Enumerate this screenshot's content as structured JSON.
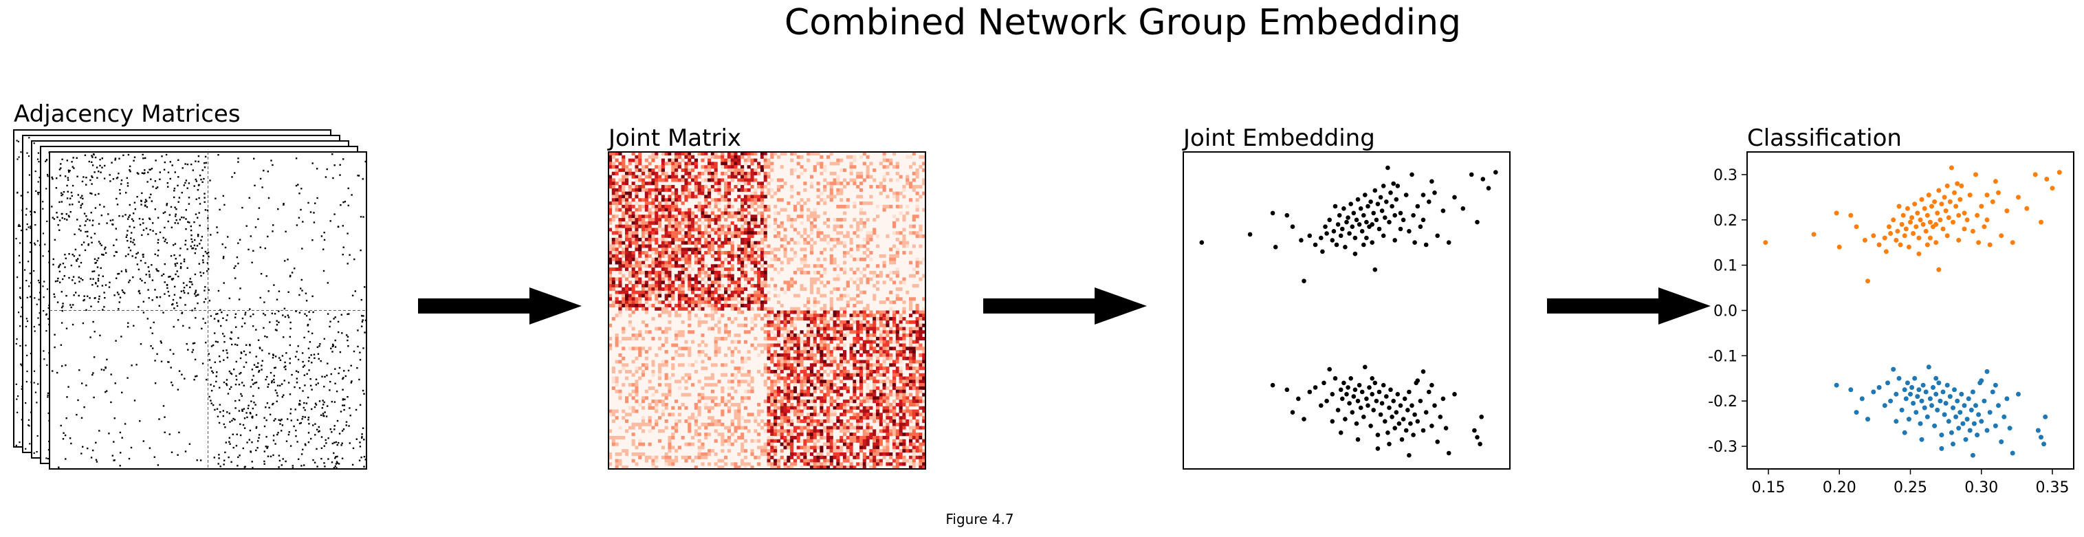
{
  "figure": {
    "title": "Combined Network Group Embedding",
    "caption": "Figure 4.7"
  },
  "panels": {
    "adjacency": {
      "title": "Adjacency Matrices",
      "stack_count": 5
    },
    "joint_matrix": {
      "title": "Joint Matrix",
      "colormap": "Reds"
    },
    "joint_embedding": {
      "title": "Joint Embedding",
      "point_color": "#000000"
    },
    "classification": {
      "title": "Classification"
    }
  },
  "colors": {
    "arrow": "#000000",
    "class_a": "#ff7f0e",
    "class_b": "#1f77b4",
    "heat_low": "#fff5f0",
    "heat_high": "#67000d"
  },
  "chart_data": {
    "type": "scatter",
    "xlim": [
      0.135,
      0.365
    ],
    "ylim": [
      -0.35,
      0.35
    ],
    "x_ticks": [
      "0.15",
      "0.20",
      "0.25",
      "0.30",
      "0.35"
    ],
    "y_ticks": [
      "-0.3",
      "-0.2",
      "-0.1",
      "0.0",
      "0.1",
      "0.2",
      "0.3"
    ],
    "x_tick_values": [
      0.15,
      0.2,
      0.25,
      0.3,
      0.35
    ],
    "y_tick_values": [
      -0.3,
      -0.2,
      -0.1,
      0.0,
      0.1,
      0.2,
      0.3
    ],
    "series": [
      {
        "color": "#ff7f0e",
        "points": [
          [
            0.148,
            0.15
          ],
          [
            0.182,
            0.168
          ],
          [
            0.198,
            0.215
          ],
          [
            0.2,
            0.14
          ],
          [
            0.208,
            0.21
          ],
          [
            0.212,
            0.185
          ],
          [
            0.218,
            0.155
          ],
          [
            0.22,
            0.065
          ],
          [
            0.224,
            0.165
          ],
          [
            0.228,
            0.145
          ],
          [
            0.232,
            0.16
          ],
          [
            0.235,
            0.185
          ],
          [
            0.236,
            0.17
          ],
          [
            0.238,
            0.2
          ],
          [
            0.24,
            0.155
          ],
          [
            0.241,
            0.175
          ],
          [
            0.242,
            0.23
          ],
          [
            0.243,
            0.145
          ],
          [
            0.244,
            0.19
          ],
          [
            0.245,
            0.21
          ],
          [
            0.246,
            0.165
          ],
          [
            0.247,
            0.18
          ],
          [
            0.248,
            0.225
          ],
          [
            0.249,
            0.14
          ],
          [
            0.25,
            0.195
          ],
          [
            0.251,
            0.205
          ],
          [
            0.252,
            0.17
          ],
          [
            0.253,
            0.235
          ],
          [
            0.254,
            0.185
          ],
          [
            0.255,
            0.215
          ],
          [
            0.256,
            0.16
          ],
          [
            0.257,
            0.2
          ],
          [
            0.258,
            0.245
          ],
          [
            0.259,
            0.19
          ],
          [
            0.26,
            0.225
          ],
          [
            0.261,
            0.175
          ],
          [
            0.262,
            0.21
          ],
          [
            0.263,
            0.255
          ],
          [
            0.264,
            0.195
          ],
          [
            0.265,
            0.23
          ],
          [
            0.266,
            0.185
          ],
          [
            0.267,
            0.24
          ],
          [
            0.268,
            0.15
          ],
          [
            0.269,
            0.215
          ],
          [
            0.27,
            0.265
          ],
          [
            0.271,
            0.2
          ],
          [
            0.272,
            0.235
          ],
          [
            0.273,
            0.18
          ],
          [
            0.274,
            0.25
          ],
          [
            0.275,
            0.22
          ],
          [
            0.276,
            0.275
          ],
          [
            0.277,
            0.205
          ],
          [
            0.278,
            0.24
          ],
          [
            0.279,
            0.315
          ],
          [
            0.28,
            0.195
          ],
          [
            0.281,
            0.26
          ],
          [
            0.282,
            0.23
          ],
          [
            0.283,
            0.28
          ],
          [
            0.284,
            0.21
          ],
          [
            0.285,
            0.245
          ],
          [
            0.286,
            0.275
          ],
          [
            0.288,
            0.215
          ],
          [
            0.29,
            0.2
          ],
          [
            0.292,
            0.255
          ],
          [
            0.294,
            0.175
          ],
          [
            0.296,
            0.3
          ],
          [
            0.298,
            0.15
          ],
          [
            0.3,
            0.23
          ],
          [
            0.302,
            0.185
          ],
          [
            0.304,
            0.255
          ],
          [
            0.306,
            0.145
          ],
          [
            0.308,
            0.24
          ],
          [
            0.31,
            0.285
          ],
          [
            0.314,
            0.165
          ],
          [
            0.318,
            0.22
          ],
          [
            0.322,
            0.15
          ],
          [
            0.326,
            0.25
          ],
          [
            0.332,
            0.225
          ],
          [
            0.338,
            0.3
          ],
          [
            0.342,
            0.195
          ],
          [
            0.346,
            0.29
          ],
          [
            0.35,
            0.27
          ],
          [
            0.355,
            0.305
          ],
          [
            0.27,
            0.09
          ],
          [
            0.262,
            0.145
          ],
          [
            0.256,
            0.125
          ],
          [
            0.233,
            0.13
          ],
          [
            0.264,
            0.16
          ],
          [
            0.288,
            0.18
          ],
          [
            0.297,
            0.21
          ],
          [
            0.304,
            0.2
          ],
          [
            0.312,
            0.26
          ],
          [
            0.284,
            0.155
          ],
          [
            0.276,
            0.165
          ],
          [
            0.268,
            0.19
          ]
        ]
      },
      {
        "color": "#1f77b4",
        "points": [
          [
            0.198,
            -0.165
          ],
          [
            0.208,
            -0.175
          ],
          [
            0.212,
            -0.225
          ],
          [
            0.216,
            -0.195
          ],
          [
            0.22,
            -0.24
          ],
          [
            0.224,
            -0.18
          ],
          [
            0.228,
            -0.17
          ],
          [
            0.232,
            -0.21
          ],
          [
            0.234,
            -0.16
          ],
          [
            0.236,
            -0.2
          ],
          [
            0.238,
            -0.13
          ],
          [
            0.24,
            -0.185
          ],
          [
            0.242,
            -0.15
          ],
          [
            0.244,
            -0.22
          ],
          [
            0.246,
            -0.175
          ],
          [
            0.247,
            -0.195
          ],
          [
            0.248,
            -0.16
          ],
          [
            0.249,
            -0.24
          ],
          [
            0.25,
            -0.185
          ],
          [
            0.251,
            -0.17
          ],
          [
            0.252,
            -0.205
          ],
          [
            0.253,
            -0.15
          ],
          [
            0.254,
            -0.225
          ],
          [
            0.255,
            -0.19
          ],
          [
            0.256,
            -0.175
          ],
          [
            0.257,
            -0.25
          ],
          [
            0.258,
            -0.2
          ],
          [
            0.259,
            -0.165
          ],
          [
            0.26,
            -0.215
          ],
          [
            0.261,
            -0.18
          ],
          [
            0.262,
            -0.235
          ],
          [
            0.263,
            -0.125
          ],
          [
            0.264,
            -0.195
          ],
          [
            0.265,
            -0.21
          ],
          [
            0.266,
            -0.17
          ],
          [
            0.267,
            -0.255
          ],
          [
            0.268,
            -0.185
          ],
          [
            0.269,
            -0.22
          ],
          [
            0.27,
            -0.16
          ],
          [
            0.271,
            -0.2
          ],
          [
            0.272,
            -0.275
          ],
          [
            0.273,
            -0.18
          ],
          [
            0.274,
            -0.23
          ],
          [
            0.275,
            -0.205
          ],
          [
            0.276,
            -0.165
          ],
          [
            0.277,
            -0.245
          ],
          [
            0.278,
            -0.19
          ],
          [
            0.279,
            -0.27
          ],
          [
            0.28,
            -0.215
          ],
          [
            0.281,
            -0.175
          ],
          [
            0.282,
            -0.235
          ],
          [
            0.283,
            -0.2
          ],
          [
            0.284,
            -0.26
          ],
          [
            0.285,
            -0.225
          ],
          [
            0.286,
            -0.185
          ],
          [
            0.287,
            -0.25
          ],
          [
            0.288,
            -0.21
          ],
          [
            0.289,
            -0.285
          ],
          [
            0.29,
            -0.24
          ],
          [
            0.291,
            -0.195
          ],
          [
            0.292,
            -0.265
          ],
          [
            0.293,
            -0.22
          ],
          [
            0.294,
            -0.18
          ],
          [
            0.295,
            -0.25
          ],
          [
            0.296,
            -0.21
          ],
          [
            0.297,
            -0.275
          ],
          [
            0.298,
            -0.23
          ],
          [
            0.299,
            -0.16
          ],
          [
            0.3,
            -0.245
          ],
          [
            0.302,
            -0.2
          ],
          [
            0.304,
            -0.265
          ],
          [
            0.306,
            -0.225
          ],
          [
            0.308,
            -0.18
          ],
          [
            0.31,
            -0.255
          ],
          [
            0.312,
            -0.21
          ],
          [
            0.314,
            -0.29
          ],
          [
            0.316,
            -0.235
          ],
          [
            0.318,
            -0.195
          ],
          [
            0.32,
            -0.26
          ],
          [
            0.322,
            -0.315
          ],
          [
            0.31,
            -0.165
          ],
          [
            0.304,
            -0.135
          ],
          [
            0.34,
            -0.265
          ],
          [
            0.342,
            -0.28
          ],
          [
            0.345,
            -0.235
          ],
          [
            0.344,
            -0.295
          ],
          [
            0.326,
            -0.185
          ],
          [
            0.294,
            -0.32
          ],
          [
            0.28,
            -0.295
          ],
          [
            0.258,
            -0.285
          ],
          [
            0.246,
            -0.27
          ],
          [
            0.268,
            -0.15
          ],
          [
            0.24,
            -0.245
          ],
          [
            0.272,
            -0.305
          ],
          [
            0.3,
            -0.155
          ]
        ]
      }
    ]
  }
}
